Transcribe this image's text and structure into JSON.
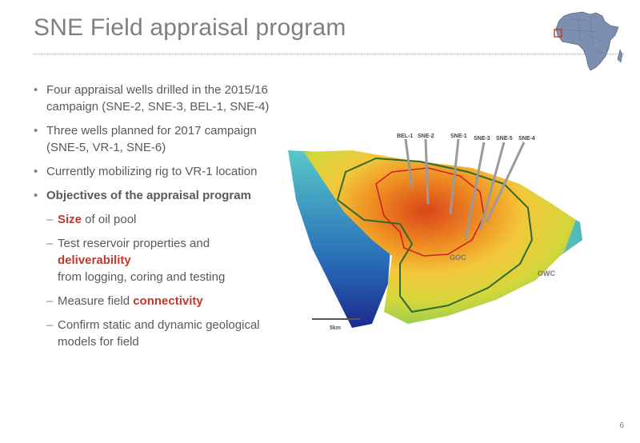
{
  "slide": {
    "title": "SNE Field appraisal program",
    "page_number": "6"
  },
  "bullets": [
    {
      "text": "Four appraisal wells drilled in the 2015/16 campaign (SNE-2, SNE-3, BEL-1, SNE-4)"
    },
    {
      "text": "Three wells planned for 2017 campaign (SNE-5, VR-1, SNE-6)"
    },
    {
      "text": "Currently mobilizing rig to VR-1 location"
    },
    {
      "text": "Objectives of the appraisal program"
    }
  ],
  "sub_bullets": {
    "size": {
      "highlight": "Size",
      "rest": " of oil pool"
    },
    "test": {
      "line1": "Test reservoir properties and",
      "highlight": "deliverability",
      "line3": "from logging, coring and testing"
    },
    "connect": {
      "prefix": "Measure field ",
      "highlight": "connectivity"
    },
    "confirm": {
      "text": "Confirm static and dynamic geological models for field"
    }
  },
  "map": {
    "wells": [
      "BEL-1",
      "SNE-2",
      "SNE-1",
      "SNE-3",
      "SNE-5",
      "SNE-4"
    ],
    "goc_label": "GOC",
    "owc_label": "OWC",
    "scale_label": "5km"
  },
  "colors": {
    "highlight": "#c0392b",
    "goc_line": "#cc2222",
    "owc_line": "#2e6b2e",
    "africa_fill": "#7d8fb0"
  }
}
